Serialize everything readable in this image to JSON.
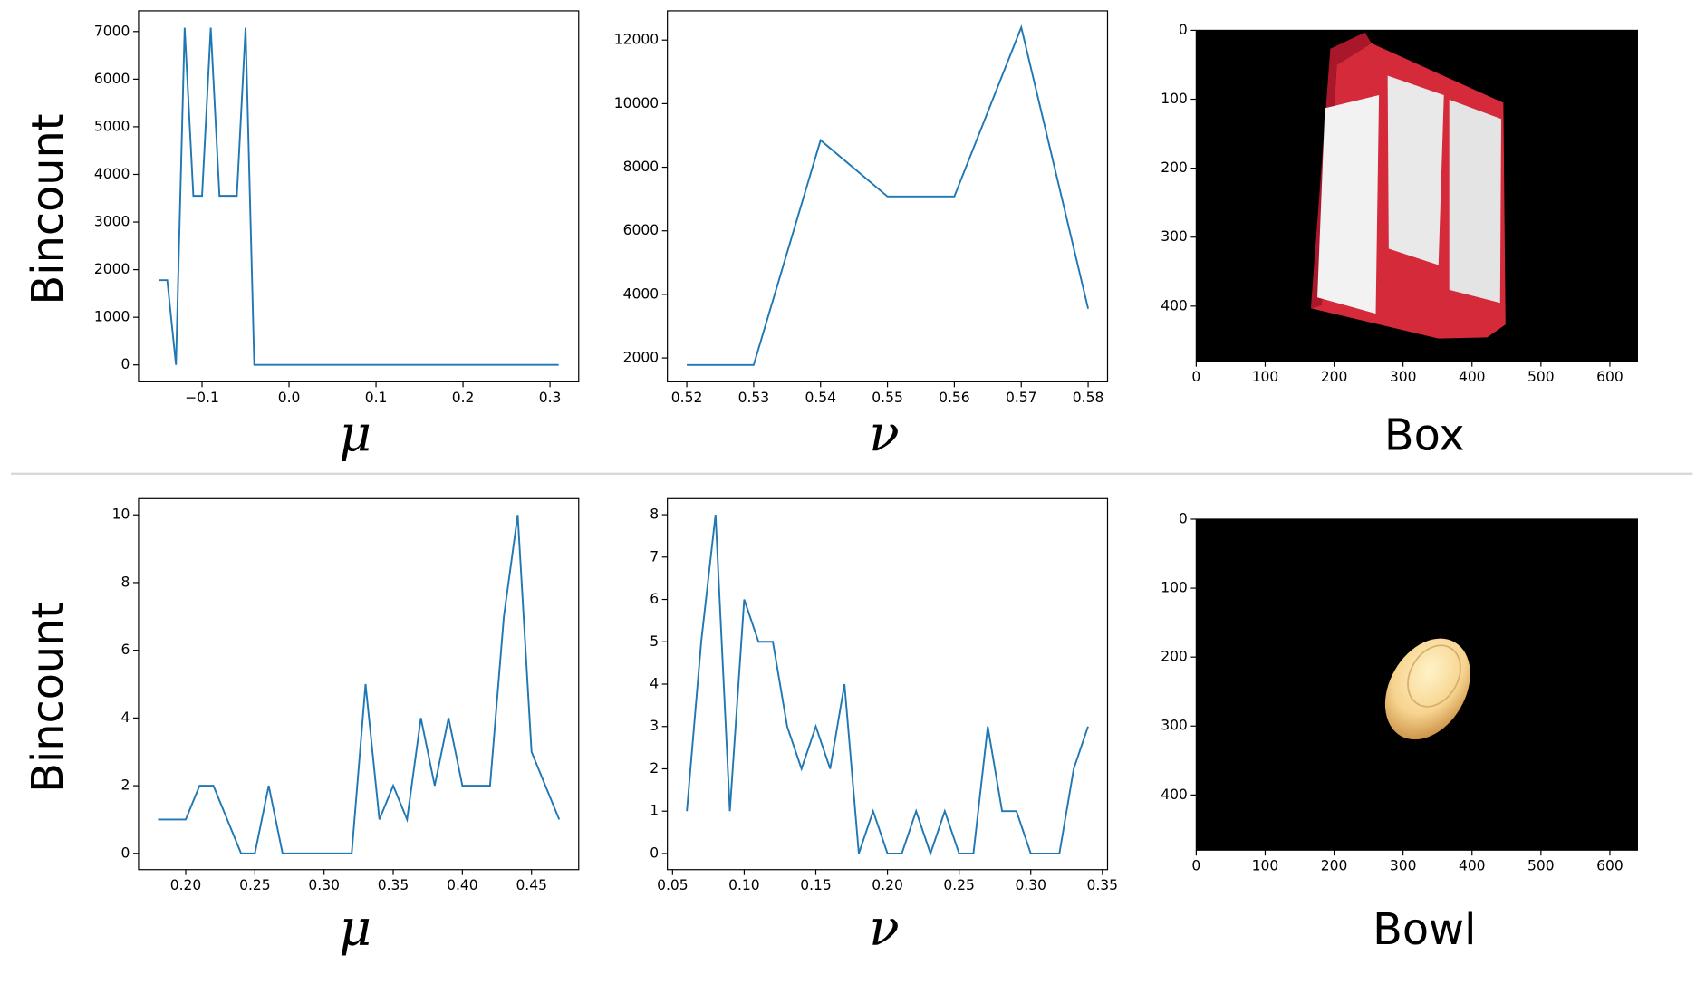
{
  "chart_data": [
    {
      "type": "line",
      "ylabel": "Bincount",
      "xlabel": "μ",
      "color": "#1f77b4",
      "x": [
        -0.15,
        -0.14,
        -0.13,
        -0.12,
        -0.11,
        -0.1,
        -0.09,
        -0.08,
        -0.07,
        -0.06,
        -0.05,
        -0.04,
        -0.03,
        -0.02,
        -0.01,
        0.0,
        0.01,
        0.02,
        0.03,
        0.04,
        0.05,
        0.06,
        0.07,
        0.08,
        0.09,
        0.1,
        0.11,
        0.12,
        0.13,
        0.14,
        0.15,
        0.16,
        0.17,
        0.18,
        0.19,
        0.2,
        0.21,
        0.22,
        0.23,
        0.24,
        0.25,
        0.26,
        0.27,
        0.28,
        0.29,
        0.3,
        0.31
      ],
      "values": [
        1780,
        1780,
        0,
        7080,
        3550,
        3550,
        7080,
        3550,
        3550,
        3550,
        7080,
        0,
        0,
        0,
        0,
        0,
        0,
        0,
        0,
        0,
        0,
        0,
        0,
        0,
        0,
        0,
        0,
        0,
        0,
        0,
        0,
        0,
        0,
        0,
        0,
        0,
        0,
        0,
        0,
        0,
        0,
        0,
        0,
        0,
        0,
        0,
        0
      ],
      "xlim": [
        -0.173,
        0.333
      ],
      "ylim": [
        -355,
        7435
      ],
      "xticks": [
        {
          "value": -0.1,
          "label": "−0.1"
        },
        {
          "value": 0,
          "label": "0.0"
        },
        0.1,
        0.2,
        0.3
      ],
      "yticks": [
        0,
        1000,
        2000,
        3000,
        4000,
        5000,
        6000,
        7000
      ]
    },
    {
      "type": "line",
      "xlabel": "ν",
      "color": "#1f77b4",
      "x": [
        0.52,
        0.53,
        0.54,
        0.55,
        0.56,
        0.57,
        0.58
      ],
      "values": [
        1780,
        1780,
        8850,
        7080,
        7080,
        12400,
        3550
      ],
      "xlim": [
        0.5171,
        0.5829
      ],
      "ylim": [
        1250,
        12920
      ],
      "xticks": [
        0.52,
        0.53,
        0.54,
        0.55,
        0.56,
        0.57,
        0.58
      ],
      "yticks": [
        2000,
        4000,
        6000,
        8000,
        10000,
        12000
      ]
    },
    {
      "type": "image",
      "xlabel": "Box",
      "object": "box",
      "xlim": [
        0,
        640
      ],
      "ylim": [
        480,
        0
      ],
      "xticks": [
        0,
        100,
        200,
        300,
        400,
        500,
        600
      ],
      "yticks": [
        0,
        100,
        200,
        300,
        400
      ]
    },
    {
      "type": "line",
      "ylabel": "Bincount",
      "xlabel": "μ",
      "color": "#1f77b4",
      "x": [
        0.18,
        0.19,
        0.2,
        0.21,
        0.22,
        0.23,
        0.24,
        0.25,
        0.26,
        0.27,
        0.28,
        0.29,
        0.3,
        0.31,
        0.32,
        0.33,
        0.34,
        0.35,
        0.36,
        0.37,
        0.38,
        0.39,
        0.4,
        0.41,
        0.42,
        0.43,
        0.44,
        0.45,
        0.46,
        0.47
      ],
      "values": [
        1,
        1,
        1,
        2,
        2,
        1,
        0,
        0,
        2,
        0,
        0,
        0,
        0,
        0,
        0,
        5,
        1,
        2,
        1,
        4,
        2,
        4,
        2,
        2,
        2,
        7,
        10,
        3,
        2,
        1
      ],
      "xlim": [
        0.1659,
        0.4841
      ],
      "ylim": [
        -0.48,
        10.48
      ],
      "xticks": [
        {
          "value": 0.2,
          "label": "0.20"
        },
        0.25,
        {
          "value": 0.3,
          "label": "0.30"
        },
        0.35,
        {
          "value": 0.4,
          "label": "0.40"
        },
        0.45
      ],
      "yticks": [
        0,
        2,
        4,
        6,
        8,
        10
      ]
    },
    {
      "type": "line",
      "xlabel": "ν",
      "color": "#1f77b4",
      "x": [
        0.06,
        0.07,
        0.08,
        0.09,
        0.1,
        0.11,
        0.12,
        0.13,
        0.14,
        0.15,
        0.16,
        0.17,
        0.18,
        0.19,
        0.2,
        0.21,
        0.22,
        0.23,
        0.24,
        0.25,
        0.26,
        0.27,
        0.28,
        0.29,
        0.3,
        0.31,
        0.32,
        0.33,
        0.34
      ],
      "values": [
        1,
        5,
        8,
        1,
        6,
        5,
        5,
        3,
        2,
        3,
        2,
        4,
        0,
        1,
        0,
        0,
        1,
        0,
        1,
        0,
        0,
        3,
        1,
        1,
        0,
        0,
        0,
        2,
        3
      ],
      "xlim": [
        0.0464,
        0.3536
      ],
      "ylim": [
        -0.38,
        8.38
      ],
      "xticks": [
        0.05,
        {
          "value": 0.1,
          "label": "0.10"
        },
        0.15,
        {
          "value": 0.2,
          "label": "0.20"
        },
        0.25,
        {
          "value": 0.3,
          "label": "0.30"
        },
        0.35
      ],
      "yticks": [
        0,
        1,
        2,
        3,
        4,
        5,
        6,
        7,
        8
      ]
    },
    {
      "type": "image",
      "xlabel": "Bowl",
      "object": "bowl",
      "xlim": [
        0,
        640
      ],
      "ylim": [
        480,
        0
      ],
      "xticks": [
        0,
        100,
        200,
        300,
        400,
        500,
        600
      ],
      "yticks": [
        0,
        100,
        200,
        300,
        400
      ]
    }
  ]
}
